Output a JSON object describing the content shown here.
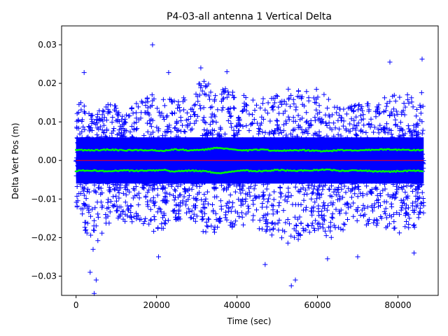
{
  "chart_data": {
    "type": "scatter",
    "title": "P4-03-all antenna 1 Vertical Delta",
    "xlabel": "Time (sec)",
    "ylabel": "Delta Vert Pos (m)",
    "xlim": [
      -3600,
      90000
    ],
    "ylim": [
      -0.035,
      0.0349
    ],
    "x_ticks": [
      0,
      20000,
      40000,
      60000,
      80000
    ],
    "x_tick_labels": [
      "0",
      "20000",
      "40000",
      "60000",
      "80000"
    ],
    "y_ticks": [
      -0.03,
      -0.02,
      -0.01,
      0.0,
      0.01,
      0.02,
      0.03
    ],
    "y_tick_labels": [
      "−0.03",
      "−0.02",
      "−0.01",
      "0.00",
      "0.01",
      "0.02",
      "0.03"
    ],
    "grid": false,
    "x_range": [
      0,
      86400
    ],
    "series": [
      {
        "name": "Vertical delta",
        "marker": "plus",
        "color": "#0000ff",
        "envelope_x": [
          0,
          4000,
          8000,
          12000,
          16000,
          20000,
          24000,
          28000,
          32000,
          36000,
          40000,
          44000,
          48000,
          52000,
          56000,
          60000,
          64000,
          68000,
          72000,
          76000,
          80000,
          84000,
          86400
        ],
        "envelope_upper": [
          0.017,
          0.012,
          0.016,
          0.013,
          0.016,
          0.019,
          0.016,
          0.017,
          0.022,
          0.019,
          0.018,
          0.016,
          0.017,
          0.019,
          0.018,
          0.019,
          0.015,
          0.014,
          0.015,
          0.016,
          0.018,
          0.017,
          0.022
        ],
        "envelope_lower": [
          -0.012,
          -0.024,
          -0.017,
          -0.016,
          -0.017,
          -0.019,
          -0.016,
          -0.016,
          -0.019,
          -0.019,
          -0.017,
          -0.017,
          -0.019,
          -0.022,
          -0.021,
          -0.018,
          -0.022,
          -0.016,
          -0.017,
          -0.017,
          -0.019,
          -0.018,
          -0.015
        ],
        "outliers": [
          [
            19000,
            0.03
          ],
          [
            31000,
            0.024
          ],
          [
            37500,
            0.023
          ],
          [
            2000,
            0.0228
          ],
          [
            23000,
            0.0228
          ],
          [
            78000,
            0.0255
          ],
          [
            86000,
            0.0263
          ],
          [
            3500,
            -0.029
          ],
          [
            5000,
            -0.031
          ],
          [
            4500,
            -0.0345
          ],
          [
            53500,
            -0.0325
          ],
          [
            54500,
            -0.031
          ],
          [
            62500,
            -0.0255
          ],
          [
            20500,
            -0.025
          ],
          [
            70000,
            -0.025
          ],
          [
            47000,
            -0.027
          ],
          [
            84000,
            -0.024
          ]
        ]
      },
      {
        "name": "Upper sigma",
        "marker": "dot",
        "color": "#00ff00",
        "x": [
          0,
          4000,
          8000,
          12000,
          16000,
          20000,
          22000,
          24000,
          28000,
          32000,
          35000,
          38000,
          42000,
          46000,
          50000,
          54000,
          58000,
          62000,
          66000,
          70000,
          74000,
          78000,
          82000,
          86400
        ],
        "y": [
          0.0027,
          0.0026,
          0.0028,
          0.0026,
          0.0027,
          0.0026,
          0.0025,
          0.0029,
          0.0026,
          0.0028,
          0.0033,
          0.003,
          0.0026,
          0.0028,
          0.0025,
          0.0027,
          0.0026,
          0.0024,
          0.0027,
          0.0026,
          0.0028,
          0.0029,
          0.0027,
          0.0027
        ]
      },
      {
        "name": "Lower sigma",
        "marker": "dot",
        "color": "#00ff00",
        "x": [
          0,
          4000,
          8000,
          12000,
          16000,
          20000,
          22000,
          24000,
          28000,
          32000,
          35000,
          38000,
          42000,
          46000,
          50000,
          54000,
          58000,
          62000,
          66000,
          70000,
          74000,
          78000,
          82000,
          86400
        ],
        "y": [
          -0.0027,
          -0.0026,
          -0.0028,
          -0.0026,
          -0.0027,
          -0.0026,
          -0.0025,
          -0.0029,
          -0.0026,
          -0.0028,
          -0.0033,
          -0.003,
          -0.0026,
          -0.0028,
          -0.0025,
          -0.0027,
          -0.0026,
          -0.0024,
          -0.0027,
          -0.0026,
          -0.0028,
          -0.0029,
          -0.0027,
          -0.0027
        ]
      },
      {
        "name": "Zero line",
        "marker": "line",
        "color": "#ff0000",
        "x": [
          0,
          86400
        ],
        "y": [
          0.0,
          0.0
        ]
      }
    ]
  }
}
